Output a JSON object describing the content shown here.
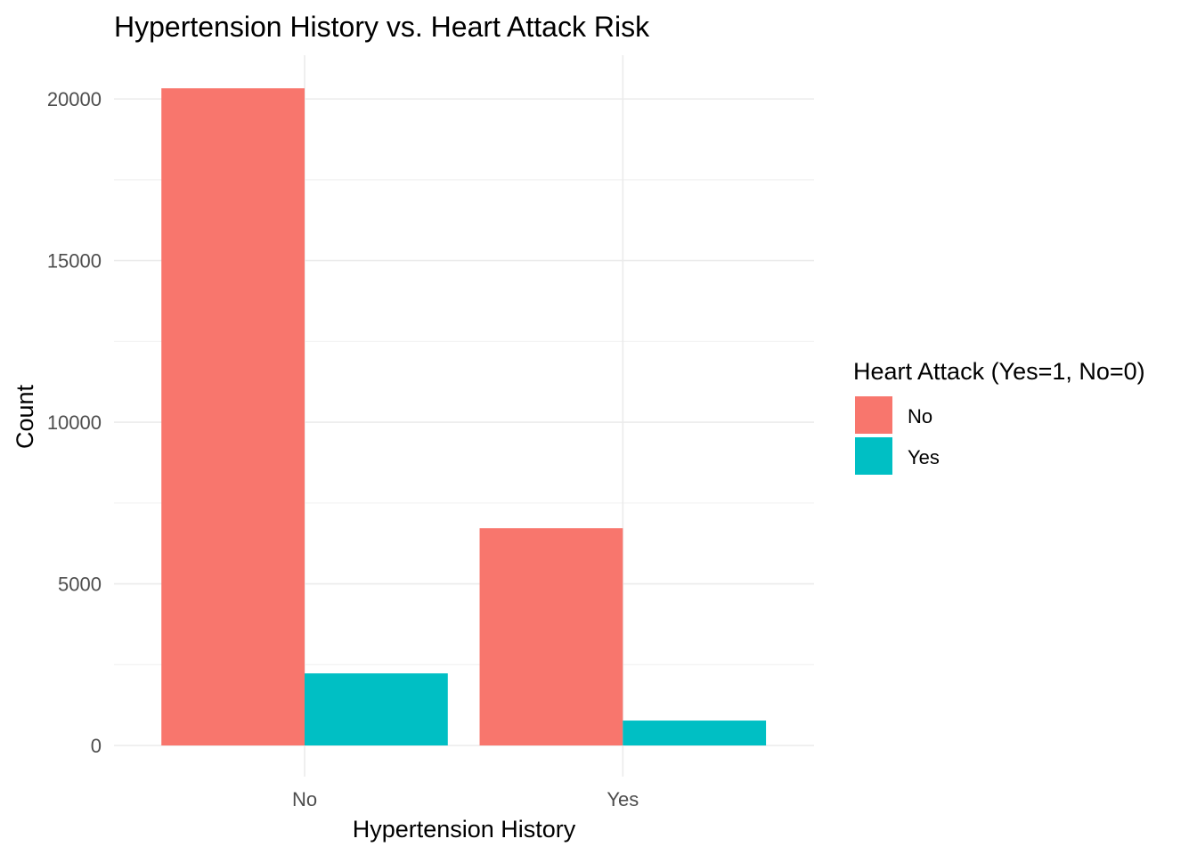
{
  "chart_data": {
    "type": "bar",
    "title": "Hypertension History vs. Heart Attack Risk",
    "xlabel": "Hypertension History",
    "ylabel": "Count",
    "categories": [
      "No",
      "Yes"
    ],
    "series": [
      {
        "name": "No",
        "values": [
          20330,
          6720
        ],
        "color": "#F8766D"
      },
      {
        "name": "Yes",
        "values": [
          2230,
          770
        ],
        "color": "#00BFC4"
      }
    ],
    "ylim": [
      0,
      21000
    ],
    "yticks": [
      0,
      5000,
      10000,
      15000,
      20000
    ],
    "ytick_labels": [
      "0",
      "5000",
      "10000",
      "15000",
      "20000"
    ],
    "grid": true,
    "legend": {
      "title": "Heart Attack (Yes=1, No=0)",
      "position": "right"
    }
  }
}
